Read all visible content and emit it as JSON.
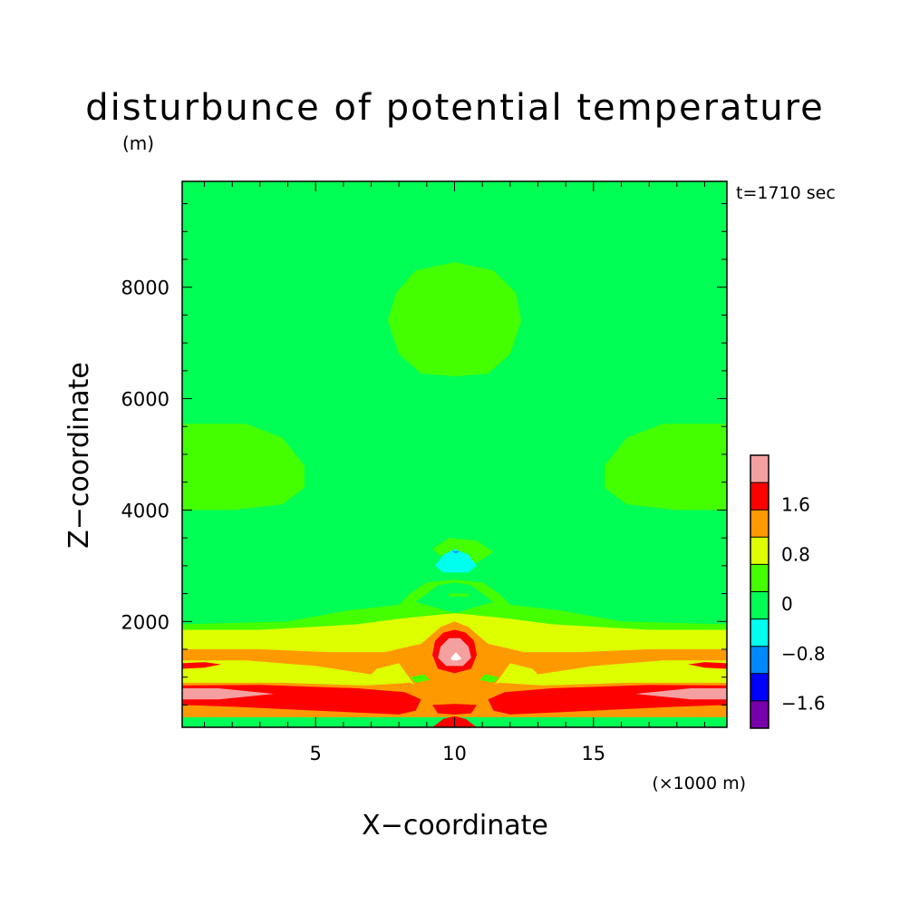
{
  "chart_data": {
    "type": "contour",
    "title": "disturbunce of potential temperature",
    "title_unit": "(m)",
    "time_label": "t=1710 sec",
    "xlabel": "X−coordinate",
    "ylabel": "Z−coordinate",
    "x_unit_label": "(×1000 m)",
    "xlim": [
      0.2,
      19.8
    ],
    "ylim": [
      100,
      9900
    ],
    "x_ticks": [
      {
        "value": 5,
        "label": "5"
      },
      {
        "value": 10,
        "label": "10"
      },
      {
        "value": 15,
        "label": "15"
      }
    ],
    "y_ticks": [
      {
        "value": 2000,
        "label": "2000"
      },
      {
        "value": 4000,
        "label": "4000"
      },
      {
        "value": 6000,
        "label": "6000"
      },
      {
        "value": 8000,
        "label": "8000"
      }
    ],
    "x_minor_step": 1,
    "y_minor_step": 500,
    "colorbar": {
      "labels": [
        {
          "value": 1.6,
          "label": "1.6"
        },
        {
          "value": 0.8,
          "label": "0.8"
        },
        {
          "value": 0,
          "label": "0"
        },
        {
          "value": -0.8,
          "label": "−0.8"
        },
        {
          "value": -1.6,
          "label": "−1.6"
        }
      ],
      "levels": [
        {
          "min": 2.0,
          "max": 2.4,
          "color": "#f4a0a0"
        },
        {
          "min": 1.6,
          "max": 2.0,
          "color": "#ff0000"
        },
        {
          "min": 0.8,
          "max": 1.2,
          "color": "#ff9900"
        },
        {
          "min": 0.4,
          "max": 0.8,
          "color": "#ddff00"
        },
        {
          "min": 0.0,
          "max": 0.4,
          "color": "#44ff00"
        },
        {
          "min": -0.4,
          "max": 0.0,
          "color": "#00ff55"
        },
        {
          "min": -0.8,
          "max": -0.4,
          "color": "#00ffee"
        },
        {
          "min": -1.2,
          "max": -0.8,
          "color": "#0088ff"
        },
        {
          "min": -1.6,
          "max": -1.2,
          "color": "#0000ff"
        },
        {
          "min": -2.0,
          "max": -1.6,
          "color": "#7700aa"
        }
      ]
    },
    "background_color": "#00ff55",
    "regions": [
      {
        "color": "#44ff00",
        "points": [
          [
            7.6,
            7400
          ],
          [
            7.9,
            7900
          ],
          [
            8.6,
            8300
          ],
          [
            10,
            8450
          ],
          [
            11.4,
            8300
          ],
          [
            12.2,
            7900
          ],
          [
            12.4,
            7400
          ],
          [
            12,
            6800
          ],
          [
            11.2,
            6450
          ],
          [
            10,
            6400
          ],
          [
            8.8,
            6450
          ],
          [
            8,
            6800
          ]
        ]
      },
      {
        "color": "#44ff00",
        "points": [
          [
            0.2,
            5550
          ],
          [
            2.5,
            5550
          ],
          [
            3.8,
            5300
          ],
          [
            4.6,
            4800
          ],
          [
            4.6,
            4400
          ],
          [
            3.8,
            4100
          ],
          [
            2,
            4000
          ],
          [
            0.2,
            4000
          ]
        ]
      },
      {
        "color": "#44ff00",
        "points": [
          [
            19.8,
            5550
          ],
          [
            17.5,
            5550
          ],
          [
            16.2,
            5300
          ],
          [
            15.4,
            4800
          ],
          [
            15.4,
            4400
          ],
          [
            16.2,
            4100
          ],
          [
            18,
            4000
          ],
          [
            19.8,
            4000
          ]
        ]
      },
      {
        "color": "#44ff00",
        "points": [
          [
            9.2,
            3300
          ],
          [
            9.8,
            3500
          ],
          [
            10.8,
            3450
          ],
          [
            11.4,
            3250
          ],
          [
            10.8,
            3050
          ],
          [
            9.8,
            3050
          ]
        ]
      },
      {
        "color": "#44ff00",
        "points": [
          [
            0.2,
            1950
          ],
          [
            4,
            2000
          ],
          [
            6.2,
            2200
          ],
          [
            8,
            2300
          ],
          [
            8.4,
            2500
          ],
          [
            9,
            2700
          ],
          [
            10,
            2750
          ],
          [
            11,
            2700
          ],
          [
            11.6,
            2500
          ],
          [
            12,
            2300
          ],
          [
            13.8,
            2200
          ],
          [
            16,
            2000
          ],
          [
            19.8,
            1950
          ],
          [
            19.8,
            1550
          ],
          [
            0.2,
            1550
          ]
        ]
      },
      {
        "color": "#00ff55",
        "points": [
          [
            8.6,
            2350
          ],
          [
            9.4,
            2650
          ],
          [
            10,
            2700
          ],
          [
            10.6,
            2650
          ],
          [
            11.4,
            2350
          ],
          [
            10,
            2150
          ]
        ]
      },
      {
        "color": "#44ff00",
        "points": [
          [
            9.8,
            2500
          ],
          [
            10.5,
            2500
          ],
          [
            10.5,
            2450
          ],
          [
            9.8,
            2450
          ]
        ]
      },
      {
        "color": "#00ffee",
        "points": [
          [
            9.3,
            3000
          ],
          [
            9.6,
            3200
          ],
          [
            10,
            3300
          ],
          [
            10.5,
            3200
          ],
          [
            10.8,
            3000
          ],
          [
            10.5,
            2880
          ],
          [
            9.6,
            2880
          ]
        ]
      },
      {
        "color": "#0088ff",
        "points": [
          [
            9.9,
            3260
          ],
          [
            10.2,
            3260
          ],
          [
            10.05,
            3220
          ]
        ]
      },
      {
        "color": "#ddff00",
        "points": [
          [
            0.2,
            1850
          ],
          [
            3,
            1850
          ],
          [
            6.5,
            1950
          ],
          [
            8,
            2050
          ],
          [
            9,
            2100
          ],
          [
            10,
            2150
          ],
          [
            11,
            2100
          ],
          [
            12,
            2050
          ],
          [
            13.5,
            1950
          ],
          [
            17,
            1850
          ],
          [
            19.8,
            1850
          ],
          [
            19.8,
            300
          ],
          [
            0.2,
            300
          ]
        ]
      },
      {
        "color": "#ff9900",
        "points": [
          [
            0.2,
            1500
          ],
          [
            3,
            1500
          ],
          [
            5.5,
            1450
          ],
          [
            7.5,
            1450
          ],
          [
            8.8,
            1600
          ],
          [
            9.5,
            1900
          ],
          [
            10,
            2000
          ],
          [
            10.5,
            1900
          ],
          [
            11.2,
            1600
          ],
          [
            12.5,
            1450
          ],
          [
            14.5,
            1450
          ],
          [
            17,
            1500
          ],
          [
            19.8,
            1500
          ],
          [
            19.8,
            1300
          ],
          [
            17.5,
            1300
          ],
          [
            15,
            1200
          ],
          [
            13,
            1050
          ],
          [
            12.8,
            1150
          ],
          [
            12,
            1250
          ],
          [
            11.5,
            900
          ],
          [
            11,
            700
          ],
          [
            10,
            650
          ],
          [
            9,
            700
          ],
          [
            8.5,
            900
          ],
          [
            8,
            1250
          ],
          [
            7.2,
            1150
          ],
          [
            7,
            1050
          ],
          [
            5,
            1200
          ],
          [
            2.5,
            1300
          ],
          [
            0.2,
            1300
          ]
        ]
      },
      {
        "color": "#ff9900",
        "points": [
          [
            0.2,
            900
          ],
          [
            3.8,
            900
          ],
          [
            6.8,
            850
          ],
          [
            8.4,
            900
          ],
          [
            9,
            800
          ],
          [
            9.5,
            700
          ],
          [
            10.5,
            700
          ],
          [
            11,
            800
          ],
          [
            11.6,
            900
          ],
          [
            13.2,
            850
          ],
          [
            16.2,
            900
          ],
          [
            19.8,
            900
          ],
          [
            19.8,
            280
          ],
          [
            0.2,
            280
          ]
        ]
      },
      {
        "color": "#44ff00",
        "points": [
          [
            8.4,
            1000
          ],
          [
            8.9,
            1050
          ],
          [
            9.1,
            950
          ],
          [
            8.6,
            900
          ]
        ]
      },
      {
        "color": "#44ff00",
        "points": [
          [
            11.6,
            1000
          ],
          [
            11.1,
            1050
          ],
          [
            10.9,
            950
          ],
          [
            11.4,
            900
          ]
        ]
      },
      {
        "color": "#ff0000",
        "points": [
          [
            0.2,
            1250
          ],
          [
            1,
            1270
          ],
          [
            1.6,
            1230
          ],
          [
            1,
            1170
          ],
          [
            0.2,
            1150
          ]
        ]
      },
      {
        "color": "#ff0000",
        "points": [
          [
            19.8,
            1250
          ],
          [
            19,
            1270
          ],
          [
            18.4,
            1230
          ],
          [
            19,
            1170
          ],
          [
            19.8,
            1150
          ]
        ]
      },
      {
        "color": "#ff0000",
        "points": [
          [
            0.2,
            850
          ],
          [
            3,
            860
          ],
          [
            6.5,
            800
          ],
          [
            8.2,
            730
          ],
          [
            8.8,
            600
          ],
          [
            8.6,
            400
          ],
          [
            8,
            330
          ],
          [
            5,
            400
          ],
          [
            2,
            470
          ],
          [
            0.2,
            500
          ]
        ]
      },
      {
        "color": "#ff0000",
        "points": [
          [
            19.8,
            850
          ],
          [
            17,
            860
          ],
          [
            13.5,
            800
          ],
          [
            11.8,
            730
          ],
          [
            11.2,
            600
          ],
          [
            11.4,
            400
          ],
          [
            12,
            330
          ],
          [
            15,
            400
          ],
          [
            18,
            470
          ],
          [
            19.8,
            500
          ]
        ]
      },
      {
        "color": "#ff0000",
        "points": [
          [
            9.2,
            500
          ],
          [
            10,
            520
          ],
          [
            10.8,
            500
          ],
          [
            10.6,
            350
          ],
          [
            10,
            330
          ],
          [
            9.4,
            350
          ]
        ]
      },
      {
        "color": "#ff0000",
        "points": [
          [
            9.2,
            100
          ],
          [
            9.6,
            250
          ],
          [
            10,
            300
          ],
          [
            10.4,
            250
          ],
          [
            10.8,
            100
          ]
        ]
      },
      {
        "color": "#f4a0a0",
        "points": [
          [
            0.2,
            800
          ],
          [
            1.5,
            800
          ],
          [
            3.5,
            700
          ],
          [
            1.5,
            600
          ],
          [
            0.2,
            600
          ]
        ]
      },
      {
        "color": "#f4a0a0",
        "points": [
          [
            19.8,
            800
          ],
          [
            18.5,
            800
          ],
          [
            16.5,
            700
          ],
          [
            18.5,
            600
          ],
          [
            19.8,
            600
          ]
        ]
      },
      {
        "color": "#ff9900",
        "points": [
          [
            9.2,
            1750
          ],
          [
            9.5,
            1900
          ],
          [
            10,
            1950
          ],
          [
            10.5,
            1900
          ],
          [
            10.8,
            1750
          ],
          [
            11,
            1450
          ],
          [
            10.9,
            1200
          ],
          [
            10.5,
            1050
          ],
          [
            10,
            1000
          ],
          [
            9.5,
            1050
          ],
          [
            9.1,
            1200
          ],
          [
            9,
            1450
          ]
        ]
      },
      {
        "color": "#ff0000",
        "points": [
          [
            9.3,
            1650
          ],
          [
            9.6,
            1800
          ],
          [
            10,
            1850
          ],
          [
            10.4,
            1800
          ],
          [
            10.7,
            1650
          ],
          [
            10.8,
            1400
          ],
          [
            10.6,
            1150
          ],
          [
            10,
            1070
          ],
          [
            9.4,
            1150
          ],
          [
            9.2,
            1400
          ]
        ]
      },
      {
        "color": "#f4a0a0",
        "points": [
          [
            9.5,
            1550
          ],
          [
            9.8,
            1700
          ],
          [
            10.2,
            1700
          ],
          [
            10.5,
            1550
          ],
          [
            10.6,
            1350
          ],
          [
            10.3,
            1200
          ],
          [
            9.7,
            1200
          ],
          [
            9.4,
            1350
          ]
        ]
      },
      {
        "color": "#ffffff",
        "points": [
          [
            9.85,
            1330
          ],
          [
            10.05,
            1450
          ],
          [
            10.25,
            1330
          ],
          [
            10.1,
            1300
          ],
          [
            9.95,
            1300
          ]
        ]
      }
    ]
  }
}
